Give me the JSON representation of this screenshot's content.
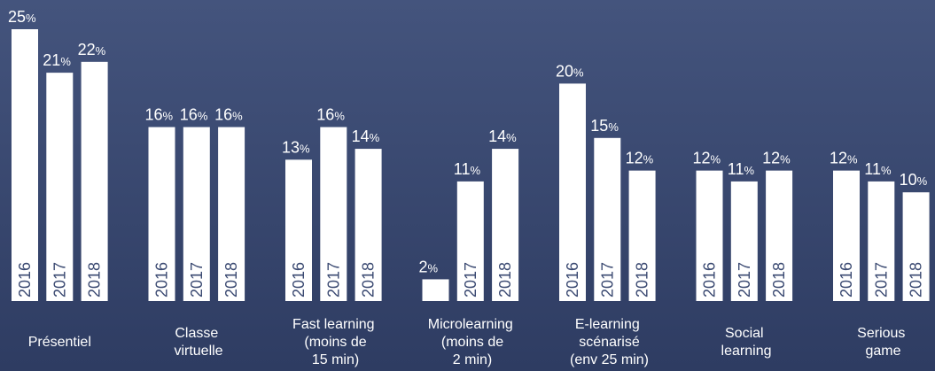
{
  "chart_data": {
    "type": "bar",
    "categories": [
      "Présentiel",
      "Classe\nvirtuelle",
      "Fast learning\n(moins de\n15 min)",
      "Microlearning\n(moins de\n2 min)",
      "E-learning\nscénarisé\n(env 25 min)",
      "Social\nlearning",
      "Serious\ngame"
    ],
    "series": [
      {
        "name": "2016",
        "color": "#ffffff",
        "values": [
          25,
          16,
          13,
          2,
          20,
          12,
          12
        ],
        "value_labels": [
          "25%",
          "16%",
          "13%",
          "2%",
          "20%",
          "12%",
          "12%"
        ]
      },
      {
        "name": "2017",
        "color": "#ffffff",
        "values": [
          21,
          16,
          16,
          11,
          15,
          11,
          11
        ],
        "value_labels": [
          "21%",
          "16%",
          "16%",
          "11%",
          "15%",
          "11%",
          "11%"
        ]
      },
      {
        "name": "2018",
        "color": "#ffffff",
        "values": [
          22,
          16,
          14,
          14,
          12,
          12,
          10
        ],
        "value_labels": [
          "22%",
          "16%",
          "14%",
          "14%",
          "12%",
          "12%",
          "10%"
        ]
      }
    ],
    "ylim": [
      0,
      25
    ]
  }
}
